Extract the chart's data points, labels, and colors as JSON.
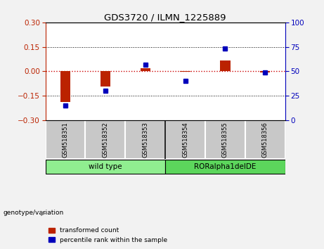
{
  "title": "GDS3720 / ILMN_1225889",
  "samples": [
    "GSM518351",
    "GSM518352",
    "GSM518353",
    "GSM518354",
    "GSM518355",
    "GSM518356"
  ],
  "red_bars": [
    -0.19,
    -0.095,
    0.018,
    -0.005,
    0.068,
    -0.008
  ],
  "blue_dots": [
    15,
    30,
    57,
    40,
    73,
    49
  ],
  "ylim_left": [
    -0.3,
    0.3
  ],
  "ylim_right": [
    0,
    100
  ],
  "yticks_left": [
    -0.3,
    -0.15,
    0,
    0.15,
    0.3
  ],
  "yticks_right": [
    0,
    25,
    50,
    75,
    100
  ],
  "groups": [
    {
      "label": "wild type",
      "samples": [
        0,
        1,
        2
      ],
      "color": "#90EE90"
    },
    {
      "label": "RORalpha1delDE",
      "samples": [
        3,
        4,
        5
      ],
      "color": "#5CD65C"
    }
  ],
  "genotype_label": "genotype/variation",
  "legend_red": "transformed count",
  "legend_blue": "percentile rank within the sample",
  "red_color": "#BB2200",
  "blue_color": "#0000BB",
  "zero_line_color": "#CC0000",
  "bg_white": "#FFFFFF",
  "bg_gray": "#C8C8C8",
  "bg_outer": "#F2F2F2",
  "bar_width": 0.25
}
